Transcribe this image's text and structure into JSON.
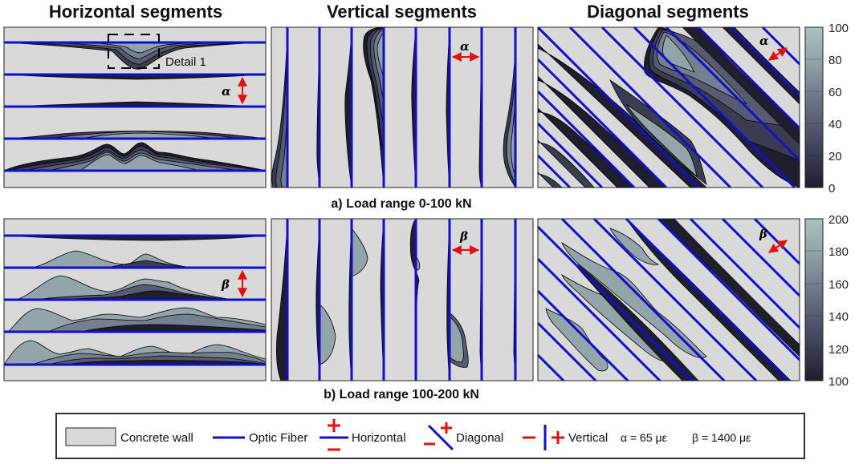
{
  "titles": {
    "horizontal": "Horizontal segments",
    "vertical": "Vertical segments",
    "diagonal": "Diagonal segments"
  },
  "captions": {
    "a": "a) Load range 0-100 kN",
    "b": "b) Load range 100-200 kN"
  },
  "annotations": {
    "detail": "Detail 1",
    "alpha": "α",
    "beta": "β"
  },
  "colorbar_top": {
    "ticks": [
      "100",
      "80",
      "60",
      "40",
      "20",
      "0"
    ]
  },
  "colorbar_bottom": {
    "ticks": [
      "200",
      "180",
      "160",
      "140",
      "120",
      "100"
    ]
  },
  "legend": {
    "concrete": "Concrete wall",
    "fiber": "Optic Fiber",
    "horizontal": "Horizontal",
    "diagonal": "Diagonal",
    "vertical": "Vertical",
    "alpha_def": "α = 65 με",
    "beta_def": "β = 1400 με"
  },
  "colors": {
    "fiber": "#1010c8",
    "concrete": "#d9d9d9",
    "arrow": "#e01010",
    "scale": [
      "#1e1e2e",
      "#3a3c52",
      "#575b72",
      "#747f90",
      "#93a5aa",
      "#a9c2c0"
    ]
  }
}
